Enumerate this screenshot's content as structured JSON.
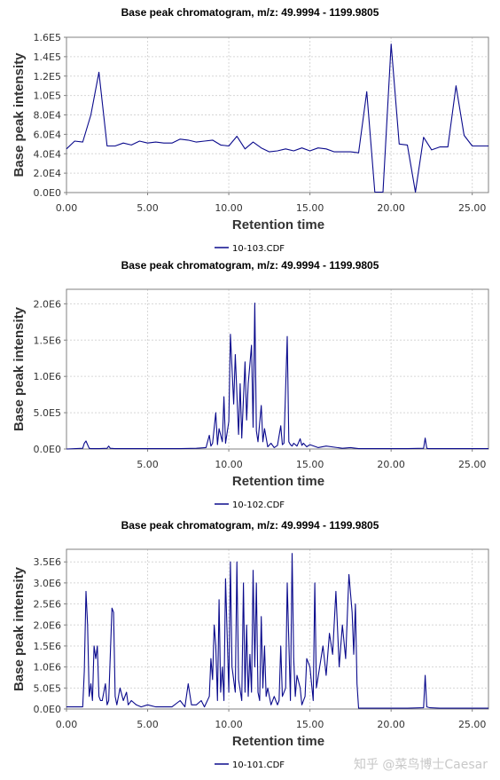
{
  "colors": {
    "series": "#0a0a8c",
    "grid": "#d6d6d6",
    "frame": "#808080"
  },
  "watermark": "知乎 @菜鸟博士Caesar",
  "chart_data": [
    {
      "type": "line",
      "title": "Base peak chromatogram, m/z: 49.9994 - 1199.9805",
      "xlabel": "Retention time",
      "ylabel": "Base peak intensity",
      "xlim": [
        0,
        26
      ],
      "ylim": [
        0,
        160000
      ],
      "xticks": [
        0,
        5,
        10,
        15,
        20,
        25
      ],
      "xtick_labels": [
        "0.00",
        "5.00",
        "10.00",
        "15.00",
        "20.00",
        "25.00"
      ],
      "yticks": [
        0,
        20000,
        40000,
        60000,
        80000,
        100000,
        120000,
        140000,
        160000
      ],
      "ytick_labels": [
        "0.0E0",
        "2.0E4",
        "4.0E4",
        "6.0E4",
        "8.0E4",
        "1.0E5",
        "1.2E5",
        "1.4E5",
        "1.6E5"
      ],
      "grid": true,
      "legend_position": "bottom-center",
      "series": [
        {
          "name": "10-103.CDF",
          "x": [
            0.0,
            0.5,
            1.0,
            1.5,
            2.0,
            2.5,
            3.0,
            3.5,
            4.0,
            4.5,
            5.0,
            5.5,
            6.0,
            6.5,
            7.0,
            7.5,
            8.0,
            8.5,
            9.0,
            9.5,
            10.0,
            10.5,
            11.0,
            11.5,
            12.0,
            12.5,
            13.0,
            13.5,
            14.0,
            14.5,
            15.0,
            15.5,
            16.0,
            16.5,
            17.0,
            17.5,
            18.0,
            18.5,
            19.0,
            19.5,
            20.0,
            20.5,
            21.0,
            21.5,
            22.0,
            22.5,
            23.0,
            23.5,
            24.0,
            24.5,
            25.0,
            25.5,
            26.0
          ],
          "y": [
            45000,
            53000,
            52000,
            80000,
            124000,
            48000,
            48000,
            51000,
            49000,
            53000,
            51000,
            52000,
            51000,
            51000,
            55000,
            54000,
            52000,
            53000,
            54000,
            49000,
            48000,
            58000,
            45000,
            52000,
            46000,
            42000,
            43000,
            45000,
            43000,
            46000,
            43000,
            46000,
            45000,
            42000,
            42000,
            42000,
            41000,
            104000,
            500,
            500,
            153000,
            50000,
            49000,
            500,
            57000,
            44000,
            47000,
            47000,
            110000,
            59000,
            48000,
            48000,
            48000
          ]
        }
      ]
    },
    {
      "type": "line",
      "title": "Base peak chromatogram, m/z: 49.9994 - 1199.9805",
      "xlabel": "Retention time",
      "ylabel": "Base peak intensity",
      "xlim": [
        0,
        26
      ],
      "ylim": [
        0,
        2200000
      ],
      "xticks": [
        5,
        10,
        15,
        20,
        25
      ],
      "xtick_labels": [
        "5.00",
        "10.00",
        "15.00",
        "20.00",
        "25.00"
      ],
      "yticks": [
        0,
        500000,
        1000000,
        1500000,
        2000000
      ],
      "ytick_labels": [
        "0.0E0",
        "5.0E5",
        "1.0E6",
        "1.5E6",
        "2.0E6"
      ],
      "grid": true,
      "legend_position": "bottom-center",
      "series": [
        {
          "name": "10-102.CDF",
          "x": [
            0.0,
            1.0,
            1.1,
            1.2,
            1.3,
            1.4,
            1.5,
            2.0,
            2.5,
            2.6,
            2.7,
            3.0,
            5.0,
            7.0,
            8.0,
            8.6,
            8.8,
            8.9,
            9.0,
            9.2,
            9.3,
            9.4,
            9.6,
            9.7,
            9.8,
            10.0,
            10.1,
            10.3,
            10.4,
            10.6,
            10.7,
            10.8,
            11.0,
            11.1,
            11.2,
            11.4,
            11.5,
            11.6,
            11.7,
            11.8,
            12.0,
            12.1,
            12.2,
            12.4,
            12.6,
            12.8,
            13.0,
            13.2,
            13.3,
            13.4,
            13.6,
            13.7,
            13.8,
            13.9,
            14.0,
            14.2,
            14.4,
            14.5,
            14.6,
            14.8,
            15.0,
            15.5,
            16.0,
            17.0,
            17.5,
            18.0,
            19.0,
            20.0,
            21.0,
            22.0,
            22.1,
            22.2,
            22.3,
            23.0,
            26.0
          ],
          "y": [
            0,
            10000,
            80000,
            110000,
            60000,
            10000,
            5000,
            5000,
            10000,
            40000,
            10000,
            5000,
            5000,
            5000,
            10000,
            20000,
            190000,
            40000,
            80000,
            500000,
            60000,
            280000,
            100000,
            720000,
            80000,
            380000,
            1580000,
            620000,
            1300000,
            200000,
            900000,
            150000,
            1200000,
            400000,
            900000,
            1430000,
            300000,
            2010000,
            250000,
            100000,
            600000,
            100000,
            280000,
            30000,
            80000,
            20000,
            50000,
            320000,
            60000,
            80000,
            1550000,
            100000,
            60000,
            40000,
            80000,
            40000,
            140000,
            50000,
            80000,
            30000,
            60000,
            20000,
            40000,
            10000,
            20000,
            5000,
            5000,
            5000,
            5000,
            10000,
            150000,
            10000,
            5000,
            5000,
            5000
          ]
        }
      ]
    },
    {
      "type": "line",
      "title": "Base peak chromatogram, m/z: 49.9994 - 1199.9805",
      "xlabel": "Retention time",
      "ylabel": "Base peak intensity",
      "xlim": [
        0,
        26
      ],
      "ylim": [
        0,
        3800000
      ],
      "xticks": [
        0,
        5,
        10,
        15,
        20,
        25
      ],
      "xtick_labels": [
        "0.00",
        "5.00",
        "10.00",
        "15.00",
        "20.00",
        "25.00"
      ],
      "yticks": [
        0,
        500000,
        1000000,
        1500000,
        2000000,
        2500000,
        3000000,
        3500000
      ],
      "ytick_labels": [
        "0.0E0",
        "5.0E5",
        "1.0E6",
        "1.5E6",
        "2.0E6",
        "2.5E6",
        "3.0E6",
        "3.5E6"
      ],
      "grid": true,
      "legend_position": "bottom-center",
      "series": [
        {
          "name": "10-101.CDF",
          "x": [
            0.0,
            1.0,
            1.1,
            1.2,
            1.3,
            1.4,
            1.5,
            1.6,
            1.7,
            1.8,
            1.9,
            2.0,
            2.1,
            2.2,
            2.4,
            2.5,
            2.6,
            2.8,
            2.9,
            3.0,
            3.1,
            3.3,
            3.5,
            3.7,
            3.8,
            4.0,
            4.3,
            4.6,
            5.0,
            5.5,
            6.0,
            6.5,
            7.0,
            7.3,
            7.5,
            7.7,
            8.0,
            8.3,
            8.5,
            8.8,
            8.9,
            9.0,
            9.1,
            9.2,
            9.3,
            9.4,
            9.5,
            9.6,
            9.7,
            9.8,
            10.0,
            10.1,
            10.2,
            10.4,
            10.5,
            10.6,
            10.8,
            10.9,
            11.0,
            11.1,
            11.2,
            11.3,
            11.4,
            11.5,
            11.6,
            11.7,
            11.8,
            11.9,
            12.0,
            12.1,
            12.2,
            12.3,
            12.4,
            12.6,
            12.8,
            13.0,
            13.1,
            13.2,
            13.3,
            13.5,
            13.6,
            13.8,
            13.9,
            14.0,
            14.1,
            14.2,
            14.4,
            14.5,
            14.7,
            14.8,
            15.0,
            15.2,
            15.3,
            15.4,
            15.6,
            15.8,
            16.0,
            16.2,
            16.4,
            16.6,
            16.8,
            17.0,
            17.2,
            17.4,
            17.6,
            17.7,
            17.8,
            17.9,
            18.0,
            18.5,
            19.0,
            20.0,
            21.0,
            22.0,
            22.1,
            22.2,
            22.4,
            23.0,
            26.0
          ],
          "y": [
            50000,
            50000,
            900000,
            2800000,
            2000000,
            300000,
            600000,
            200000,
            1500000,
            1200000,
            1500000,
            300000,
            200000,
            200000,
            600000,
            100000,
            200000,
            2400000,
            2300000,
            300000,
            100000,
            500000,
            200000,
            400000,
            100000,
            200000,
            100000,
            50000,
            100000,
            50000,
            50000,
            50000,
            200000,
            50000,
            600000,
            100000,
            100000,
            200000,
            50000,
            300000,
            1200000,
            700000,
            2000000,
            1500000,
            200000,
            2600000,
            400000,
            1000000,
            200000,
            3100000,
            400000,
            3500000,
            1000000,
            400000,
            3500000,
            700000,
            200000,
            3000000,
            400000,
            2000000,
            300000,
            1300000,
            400000,
            3300000,
            1000000,
            3000000,
            400000,
            200000,
            2200000,
            500000,
            1500000,
            300000,
            500000,
            100000,
            300000,
            100000,
            200000,
            1500000,
            300000,
            500000,
            3000000,
            200000,
            3700000,
            1200000,
            300000,
            800000,
            500000,
            100000,
            300000,
            1200000,
            1000000,
            200000,
            3000000,
            500000,
            1000000,
            1500000,
            800000,
            1800000,
            1300000,
            2800000,
            1000000,
            2000000,
            1200000,
            3200000,
            2300000,
            1300000,
            2500000,
            600000,
            20000,
            20000,
            20000,
            20000,
            20000,
            30000,
            800000,
            50000,
            30000,
            20000,
            20000
          ]
        }
      ]
    }
  ]
}
